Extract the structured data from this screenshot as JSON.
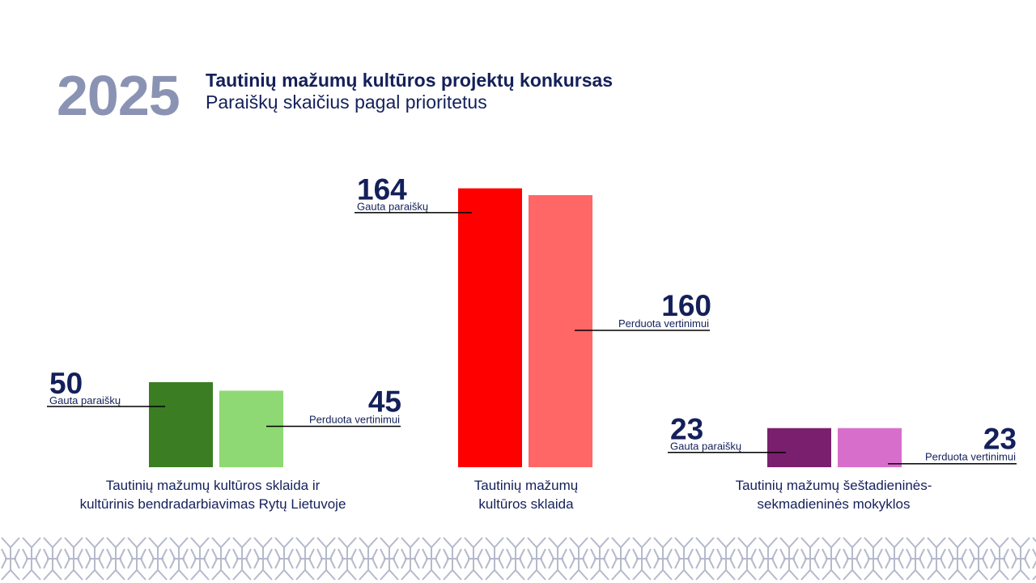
{
  "header": {
    "year": "2025",
    "title": "Tautinių mažumų kultūros projektų konkursas",
    "subtitle": "Paraiškų skaičius pagal prioritetus"
  },
  "chart_data": {
    "type": "bar",
    "series_labels": {
      "received": "Gauta paraiškų",
      "forwarded": "Perduota vertinimui"
    },
    "groups": [
      {
        "category_lines": [
          "Tautinių mažumų kultūros sklaida ir",
          "kultūrinis bendradarbiavimas Rytų Lietuvoje"
        ],
        "received": 50,
        "forwarded": 45,
        "colors": {
          "received": "#3b7d23",
          "forwarded": "#8ed973"
        }
      },
      {
        "category_lines": [
          "Tautinių mažumų",
          "kultūros sklaida"
        ],
        "received": 164,
        "forwarded": 160,
        "colors": {
          "received": "#ff0000",
          "forwarded": "#ff6666"
        }
      },
      {
        "category_lines": [
          "Tautinių mažumų šeštadieninės-",
          "sekmadieninės mokyklos"
        ],
        "received": 23,
        "forwarded": 23,
        "colors": {
          "received": "#7a1f6e",
          "forwarded": "#d86ecc"
        }
      }
    ]
  },
  "colors": {
    "text": "#14205a",
    "year": "#8a93b3",
    "pattern": "#b5b9cc"
  }
}
